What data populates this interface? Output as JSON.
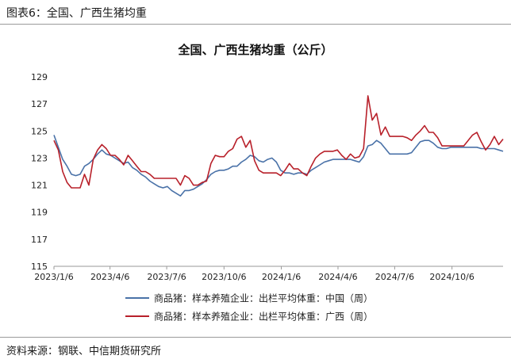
{
  "header": {
    "title": "图表6：全国、广西生猪均重"
  },
  "source": "资料来源：钢联、中信期货研究所",
  "colors": {
    "china": "#4a72a8",
    "guangxi": "#b8202a",
    "axis": "#9a9a9a"
  },
  "chart_data": {
    "type": "line",
    "title": "全国、广西生猪均重（公斤）",
    "xlabel": "",
    "ylabel": "",
    "ylim": [
      115,
      129
    ],
    "yticks": [
      115,
      117,
      119,
      121,
      123,
      125,
      127,
      129
    ],
    "xlim": [
      "2023-01-06",
      "2024-12-27"
    ],
    "xtick_labels": [
      "2023/1/6",
      "2023/4/6",
      "2023/7/6",
      "2023/10/6",
      "2024/1/6",
      "2024/4/6",
      "2024/7/6",
      "2024/10/6"
    ],
    "grid": false,
    "legend_position": "bottom",
    "series": [
      {
        "name": "商品猪：样本养殖企业：出栏平均体重：中国（周）",
        "color": "#4a72a8",
        "points": [
          [
            "2023-01-06",
            124.7
          ],
          [
            "2023-01-13",
            123.8
          ],
          [
            "2023-01-20",
            122.9
          ],
          [
            "2023-01-27",
            122.4
          ],
          [
            "2023-02-03",
            121.8
          ],
          [
            "2023-02-10",
            121.7
          ],
          [
            "2023-02-17",
            121.8
          ],
          [
            "2023-02-24",
            122.4
          ],
          [
            "2023-03-03",
            122.6
          ],
          [
            "2023-03-10",
            122.9
          ],
          [
            "2023-03-17",
            123.3
          ],
          [
            "2023-03-24",
            123.6
          ],
          [
            "2023-03-31",
            123.3
          ],
          [
            "2023-04-07",
            123.2
          ],
          [
            "2023-04-14",
            123.0
          ],
          [
            "2023-04-21",
            122.8
          ],
          [
            "2023-04-28",
            122.6
          ],
          [
            "2023-05-05",
            122.7
          ],
          [
            "2023-05-12",
            122.3
          ],
          [
            "2023-05-19",
            122.1
          ],
          [
            "2023-05-26",
            121.8
          ],
          [
            "2023-06-02",
            121.6
          ],
          [
            "2023-06-09",
            121.3
          ],
          [
            "2023-06-16",
            121.1
          ],
          [
            "2023-06-23",
            120.9
          ],
          [
            "2023-06-30",
            120.8
          ],
          [
            "2023-07-07",
            120.9
          ],
          [
            "2023-07-14",
            120.6
          ],
          [
            "2023-07-21",
            120.4
          ],
          [
            "2023-07-28",
            120.2
          ],
          [
            "2023-08-04",
            120.6
          ],
          [
            "2023-08-11",
            120.6
          ],
          [
            "2023-08-18",
            120.7
          ],
          [
            "2023-08-25",
            120.9
          ],
          [
            "2023-09-01",
            121.1
          ],
          [
            "2023-09-08",
            121.4
          ],
          [
            "2023-09-15",
            121.8
          ],
          [
            "2023-09-22",
            122.0
          ],
          [
            "2023-09-29",
            122.1
          ],
          [
            "2023-10-06",
            122.1
          ],
          [
            "2023-10-13",
            122.2
          ],
          [
            "2023-10-20",
            122.4
          ],
          [
            "2023-10-27",
            122.4
          ],
          [
            "2023-11-03",
            122.7
          ],
          [
            "2023-11-10",
            122.9
          ],
          [
            "2023-11-17",
            123.2
          ],
          [
            "2023-11-24",
            123.1
          ],
          [
            "2023-12-01",
            122.8
          ],
          [
            "2023-12-08",
            122.7
          ],
          [
            "2023-12-15",
            122.9
          ],
          [
            "2023-12-22",
            123.0
          ],
          [
            "2023-12-29",
            122.7
          ],
          [
            "2024-01-05",
            122.1
          ],
          [
            "2024-01-12",
            121.9
          ],
          [
            "2024-01-19",
            121.9
          ],
          [
            "2024-01-26",
            121.8
          ],
          [
            "2024-02-02",
            121.9
          ],
          [
            "2024-02-09",
            121.9
          ],
          [
            "2024-02-16",
            121.8
          ],
          [
            "2024-02-23",
            122.1
          ],
          [
            "2024-03-01",
            122.3
          ],
          [
            "2024-03-08",
            122.5
          ],
          [
            "2024-03-15",
            122.7
          ],
          [
            "2024-03-22",
            122.8
          ],
          [
            "2024-03-29",
            122.9
          ],
          [
            "2024-04-05",
            122.9
          ],
          [
            "2024-04-12",
            122.9
          ],
          [
            "2024-04-19",
            122.9
          ],
          [
            "2024-04-26",
            122.9
          ],
          [
            "2024-05-03",
            122.8
          ],
          [
            "2024-05-10",
            122.7
          ],
          [
            "2024-05-17",
            123.1
          ],
          [
            "2024-05-24",
            123.9
          ],
          [
            "2024-05-31",
            124.0
          ],
          [
            "2024-06-07",
            124.3
          ],
          [
            "2024-06-14",
            124.1
          ],
          [
            "2024-06-21",
            123.7
          ],
          [
            "2024-06-28",
            123.3
          ],
          [
            "2024-07-05",
            123.3
          ],
          [
            "2024-07-12",
            123.3
          ],
          [
            "2024-07-19",
            123.3
          ],
          [
            "2024-07-26",
            123.3
          ],
          [
            "2024-08-02",
            123.4
          ],
          [
            "2024-08-09",
            123.8
          ],
          [
            "2024-08-16",
            124.2
          ],
          [
            "2024-08-23",
            124.3
          ],
          [
            "2024-08-30",
            124.3
          ],
          [
            "2024-09-06",
            124.1
          ],
          [
            "2024-09-13",
            123.8
          ],
          [
            "2024-09-20",
            123.7
          ],
          [
            "2024-09-27",
            123.7
          ],
          [
            "2024-10-04",
            123.8
          ],
          [
            "2024-10-11",
            123.8
          ],
          [
            "2024-10-18",
            123.8
          ],
          [
            "2024-10-25",
            123.8
          ],
          [
            "2024-11-01",
            123.8
          ],
          [
            "2024-11-08",
            123.8
          ],
          [
            "2024-11-15",
            123.8
          ],
          [
            "2024-11-22",
            123.7
          ],
          [
            "2024-11-29",
            123.7
          ],
          [
            "2024-12-06",
            123.7
          ],
          [
            "2024-12-13",
            123.7
          ],
          [
            "2024-12-20",
            123.6
          ],
          [
            "2024-12-27",
            123.5
          ]
        ]
      },
      {
        "name": "商品猪：样本养殖企业：出栏平均体重：广西（周）",
        "color": "#b8202a",
        "points": [
          [
            "2023-01-06",
            124.3
          ],
          [
            "2023-01-13",
            123.6
          ],
          [
            "2023-01-20",
            122.0
          ],
          [
            "2023-01-27",
            121.2
          ],
          [
            "2023-02-03",
            120.8
          ],
          [
            "2023-02-10",
            120.8
          ],
          [
            "2023-02-17",
            120.8
          ],
          [
            "2023-02-24",
            121.8
          ],
          [
            "2023-03-03",
            121.0
          ],
          [
            "2023-03-10",
            122.9
          ],
          [
            "2023-03-17",
            123.6
          ],
          [
            "2023-03-24",
            124.0
          ],
          [
            "2023-03-31",
            123.7
          ],
          [
            "2023-04-07",
            123.2
          ],
          [
            "2023-04-14",
            123.2
          ],
          [
            "2023-04-21",
            122.9
          ],
          [
            "2023-04-28",
            122.5
          ],
          [
            "2023-05-05",
            123.2
          ],
          [
            "2023-05-12",
            122.8
          ],
          [
            "2023-05-19",
            122.4
          ],
          [
            "2023-05-26",
            122.0
          ],
          [
            "2023-06-02",
            122.0
          ],
          [
            "2023-06-09",
            121.8
          ],
          [
            "2023-06-16",
            121.5
          ],
          [
            "2023-06-23",
            121.5
          ],
          [
            "2023-06-30",
            121.5
          ],
          [
            "2023-07-07",
            121.5
          ],
          [
            "2023-07-14",
            121.5
          ],
          [
            "2023-07-21",
            121.5
          ],
          [
            "2023-07-28",
            121.0
          ],
          [
            "2023-08-04",
            121.7
          ],
          [
            "2023-08-11",
            121.5
          ],
          [
            "2023-08-18",
            121.0
          ],
          [
            "2023-08-25",
            121.0
          ],
          [
            "2023-09-01",
            121.2
          ],
          [
            "2023-09-08",
            121.3
          ],
          [
            "2023-09-15",
            122.6
          ],
          [
            "2023-09-22",
            123.2
          ],
          [
            "2023-09-29",
            123.1
          ],
          [
            "2023-10-06",
            123.1
          ],
          [
            "2023-10-13",
            123.5
          ],
          [
            "2023-10-20",
            123.7
          ],
          [
            "2023-10-27",
            124.4
          ],
          [
            "2023-11-03",
            124.6
          ],
          [
            "2023-11-10",
            123.8
          ],
          [
            "2023-11-17",
            124.3
          ],
          [
            "2023-11-24",
            122.8
          ],
          [
            "2023-12-01",
            122.1
          ],
          [
            "2023-12-08",
            121.9
          ],
          [
            "2023-12-15",
            121.9
          ],
          [
            "2023-12-22",
            121.9
          ],
          [
            "2023-12-29",
            121.9
          ],
          [
            "2024-01-05",
            121.7
          ],
          [
            "2024-01-12",
            122.1
          ],
          [
            "2024-01-19",
            122.6
          ],
          [
            "2024-01-26",
            122.2
          ],
          [
            "2024-02-02",
            122.2
          ],
          [
            "2024-02-09",
            121.9
          ],
          [
            "2024-02-16",
            121.7
          ],
          [
            "2024-02-23",
            122.4
          ],
          [
            "2024-03-01",
            123.0
          ],
          [
            "2024-03-08",
            123.3
          ],
          [
            "2024-03-15",
            123.5
          ],
          [
            "2024-03-22",
            123.5
          ],
          [
            "2024-03-29",
            123.5
          ],
          [
            "2024-04-05",
            123.6
          ],
          [
            "2024-04-12",
            123.2
          ],
          [
            "2024-04-19",
            122.9
          ],
          [
            "2024-04-26",
            123.3
          ],
          [
            "2024-05-03",
            123.0
          ],
          [
            "2024-05-10",
            123.1
          ],
          [
            "2024-05-17",
            123.7
          ],
          [
            "2024-05-24",
            127.6
          ],
          [
            "2024-05-31",
            125.8
          ],
          [
            "2024-06-07",
            126.3
          ],
          [
            "2024-06-14",
            124.7
          ],
          [
            "2024-06-21",
            125.3
          ],
          [
            "2024-06-28",
            124.6
          ],
          [
            "2024-07-05",
            124.6
          ],
          [
            "2024-07-12",
            124.6
          ],
          [
            "2024-07-19",
            124.6
          ],
          [
            "2024-07-26",
            124.5
          ],
          [
            "2024-08-02",
            124.3
          ],
          [
            "2024-08-09",
            124.7
          ],
          [
            "2024-08-16",
            125.0
          ],
          [
            "2024-08-23",
            125.4
          ],
          [
            "2024-08-30",
            124.9
          ],
          [
            "2024-09-06",
            124.9
          ],
          [
            "2024-09-13",
            124.5
          ],
          [
            "2024-09-20",
            123.9
          ],
          [
            "2024-09-27",
            123.9
          ],
          [
            "2024-10-04",
            123.9
          ],
          [
            "2024-10-11",
            123.9
          ],
          [
            "2024-10-18",
            123.9
          ],
          [
            "2024-10-25",
            123.9
          ],
          [
            "2024-11-01",
            124.3
          ],
          [
            "2024-11-08",
            124.7
          ],
          [
            "2024-11-15",
            124.9
          ],
          [
            "2024-11-22",
            124.2
          ],
          [
            "2024-11-29",
            123.6
          ],
          [
            "2024-12-06",
            124.0
          ],
          [
            "2024-12-13",
            124.6
          ],
          [
            "2024-12-20",
            124.0
          ],
          [
            "2024-12-27",
            124.4
          ]
        ]
      }
    ]
  }
}
